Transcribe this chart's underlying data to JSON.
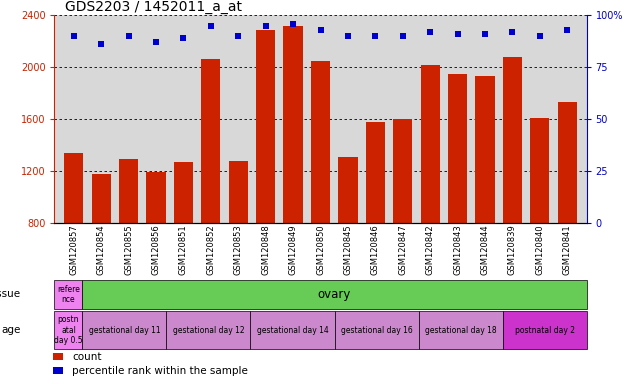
{
  "title": "GDS2203 / 1452011_a_at",
  "samples": [
    "GSM120857",
    "GSM120854",
    "GSM120855",
    "GSM120856",
    "GSM120851",
    "GSM120852",
    "GSM120853",
    "GSM120848",
    "GSM120849",
    "GSM120850",
    "GSM120845",
    "GSM120846",
    "GSM120847",
    "GSM120842",
    "GSM120843",
    "GSM120844",
    "GSM120839",
    "GSM120840",
    "GSM120841"
  ],
  "counts": [
    1340,
    1175,
    1295,
    1195,
    1270,
    2060,
    1280,
    2290,
    2320,
    2050,
    1305,
    1580,
    1600,
    2020,
    1950,
    1930,
    2080,
    1610,
    1730
  ],
  "percentiles": [
    90,
    86,
    90,
    87,
    89,
    95,
    90,
    95,
    96,
    93,
    90,
    90,
    90,
    92,
    91,
    91,
    92,
    90,
    93
  ],
  "ylim_left": [
    800,
    2400
  ],
  "ylim_right": [
    0,
    100
  ],
  "bar_color": "#cc2200",
  "dot_color": "#0000cc",
  "bg_color": "#d8d8d8",
  "tissue_ref_color": "#ee82ee",
  "tissue_ovary_color": "#66cc55",
  "age_postnatal_color": "#ee82ee",
  "age_gestational_color": "#cc88cc",
  "age_postnatal2_color": "#cc33cc",
  "tissue_row_label": "tissue",
  "age_row_label": "age",
  "tissue_ref_text": "refere\nnce",
  "tissue_ovary_text": "ovary",
  "age_groups": [
    {
      "label": "postn\natal\nday 0.5",
      "color": "#ee82ee",
      "count": 1
    },
    {
      "label": "gestational day 11",
      "color": "#cc88cc",
      "count": 3
    },
    {
      "label": "gestational day 12",
      "color": "#cc88cc",
      "count": 3
    },
    {
      "label": "gestational day 14",
      "color": "#cc88cc",
      "count": 3
    },
    {
      "label": "gestational day 16",
      "color": "#cc88cc",
      "count": 3
    },
    {
      "label": "gestational day 18",
      "color": "#cc88cc",
      "count": 3
    },
    {
      "label": "postnatal day 2",
      "color": "#cc33cc",
      "count": 3
    }
  ],
  "legend_items": [
    {
      "color": "#cc2200",
      "label": "count"
    },
    {
      "color": "#0000cc",
      "label": "percentile rank within the sample"
    }
  ],
  "yticks_left": [
    800,
    1200,
    1600,
    2000,
    2400
  ],
  "yticks_right": [
    0,
    25,
    50,
    75,
    100
  ],
  "title_fontsize": 10,
  "tick_fontsize": 7,
  "label_fontsize": 6,
  "bar_width": 0.7
}
